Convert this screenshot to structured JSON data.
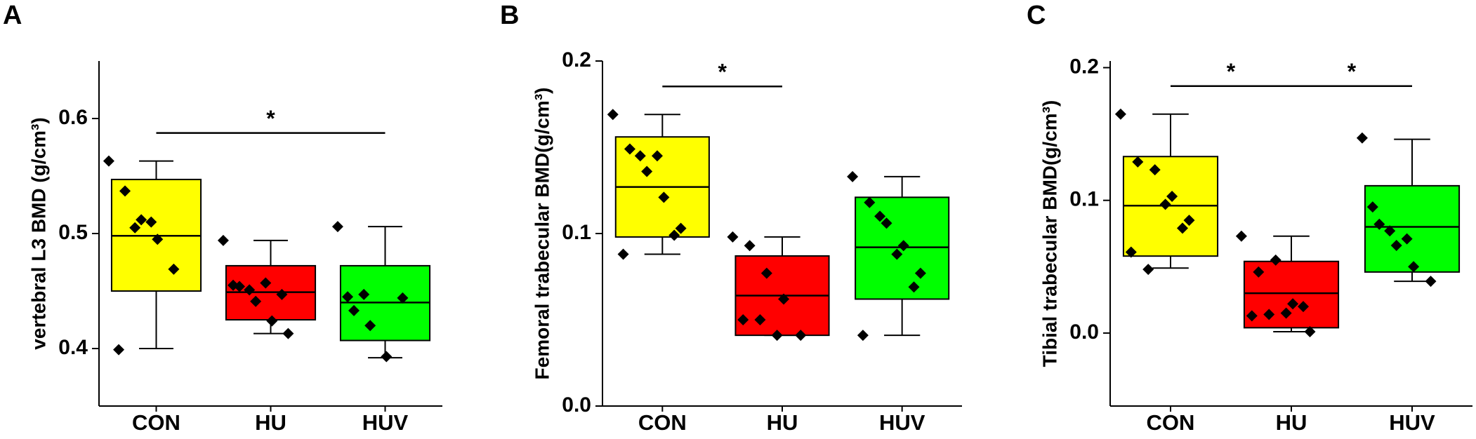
{
  "chart_data": [
    {
      "type": "box",
      "panel": "A",
      "y_label": "vertebral L3 BMD (g/cm³)",
      "categories": [
        "CON",
        "HU",
        "HUV"
      ],
      "colors": [
        "#ffff00",
        "#ff0000",
        "#00ff00"
      ],
      "ylim": [
        0.35,
        0.65
      ],
      "yticks": [
        0.4,
        0.5,
        0.6
      ],
      "boxes": [
        {
          "whislo": 0.4,
          "q1": 0.45,
          "med": 0.498,
          "q3": 0.547,
          "whishi": 0.563,
          "points": [
            0.563,
            0.537,
            0.512,
            0.495,
            0.469,
            0.399,
            0.505,
            0.51
          ]
        },
        {
          "whislo": 0.413,
          "q1": 0.425,
          "med": 0.449,
          "q3": 0.472,
          "whishi": 0.494,
          "points": [
            0.494,
            0.454,
            0.441,
            0.424,
            0.413,
            0.455,
            0.451,
            0.457,
            0.447
          ]
        },
        {
          "whislo": 0.392,
          "q1": 0.407,
          "med": 0.44,
          "q3": 0.472,
          "whishi": 0.506,
          "points": [
            0.506,
            0.433,
            0.42,
            0.393,
            0.444,
            0.445,
            0.447
          ]
        }
      ],
      "significance": [
        {
          "pair": [
            0,
            2
          ],
          "label": "*"
        }
      ]
    },
    {
      "type": "box",
      "panel": "B",
      "y_label": "Femoral trabecular BMD(g/cm³)",
      "categories": [
        "CON",
        "HU",
        "HUV"
      ],
      "colors": [
        "#ffff00",
        "#ff0000",
        "#00ff00"
      ],
      "ylim": [
        0,
        0.2
      ],
      "yticks": [
        {
          "value": 0,
          "label": "0.0"
        },
        0.1,
        0.2
      ],
      "boxes": [
        {
          "whislo": 0.088,
          "q1": 0.098,
          "med": 0.127,
          "q3": 0.156,
          "whishi": 0.169,
          "points": [
            0.169,
            0.149,
            0.136,
            0.121,
            0.103,
            0.088,
            0.145,
            0.145,
            0.099
          ]
        },
        {
          "whislo": 0.041,
          "q1": 0.041,
          "med": 0.064,
          "q3": 0.087,
          "whishi": 0.098,
          "points": [
            0.098,
            0.093,
            0.077,
            0.062,
            0.041,
            0.05,
            0.05,
            0.041
          ]
        },
        {
          "whislo": 0.041,
          "q1": 0.062,
          "med": 0.092,
          "q3": 0.121,
          "whishi": 0.133,
          "points": [
            0.133,
            0.118,
            0.106,
            0.093,
            0.077,
            0.041,
            0.11,
            0.088,
            0.069
          ]
        }
      ],
      "significance": [
        {
          "pair": [
            0,
            1
          ],
          "label": "*"
        }
      ]
    },
    {
      "type": "box",
      "panel": "C",
      "y_label": "Tibial trabecular BMD(g/cm³)",
      "categories": [
        "CON",
        "HU",
        "HUV"
      ],
      "colors": [
        "#ffff00",
        "#ff0000",
        "#00ff00"
      ],
      "ylim": [
        -0.055,
        0.205
      ],
      "yticks": [
        {
          "value": 0,
          "label": "0.0"
        },
        0.1,
        0.2
      ],
      "boxes": [
        {
          "whislo": 0.049,
          "q1": 0.058,
          "med": 0.096,
          "q3": 0.133,
          "whishi": 0.165,
          "points": [
            0.165,
            0.129,
            0.123,
            0.103,
            0.085,
            0.061,
            0.048,
            0.097,
            0.079
          ]
        },
        {
          "whislo": 0.001,
          "q1": 0.004,
          "med": 0.03,
          "q3": 0.054,
          "whishi": 0.073,
          "points": [
            0.073,
            0.046,
            0.055,
            0.022,
            0.001,
            0.013,
            0.014,
            0.015,
            0.02
          ]
        },
        {
          "whislo": 0.039,
          "q1": 0.046,
          "med": 0.08,
          "q3": 0.111,
          "whishi": 0.146,
          "points": [
            0.147,
            0.082,
            0.066,
            0.05,
            0.039,
            0.095,
            0.077,
            0.071
          ]
        }
      ],
      "significance": [
        {
          "pair": [
            0,
            1
          ],
          "label": "*"
        },
        {
          "pair": [
            1,
            2
          ],
          "label": "*"
        }
      ]
    }
  ]
}
